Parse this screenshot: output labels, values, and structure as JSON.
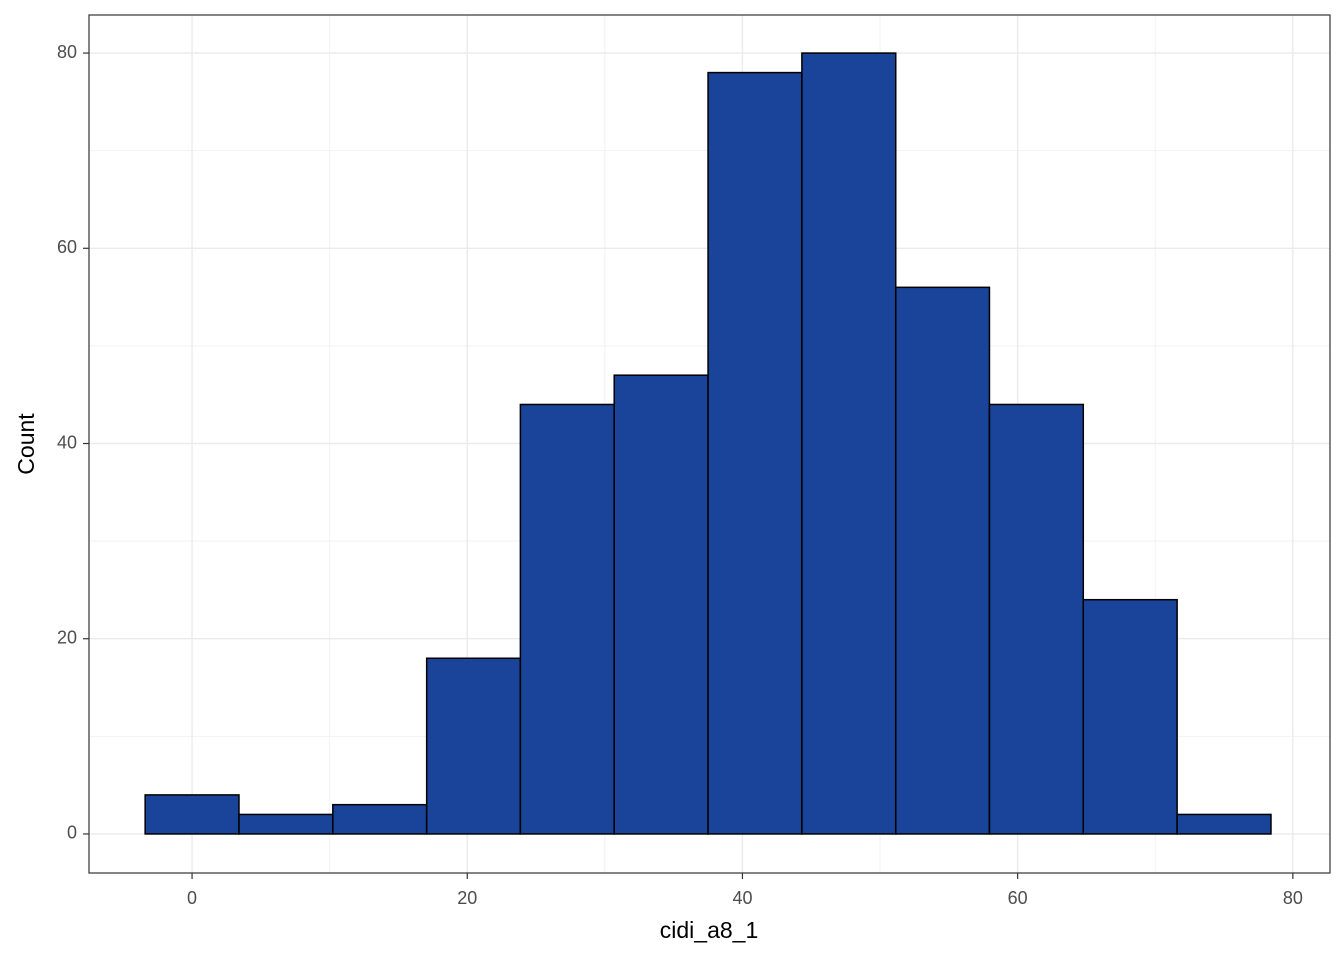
{
  "chart_data": {
    "type": "histogram",
    "x_label": "cidi_a8_1",
    "y_label": "Count",
    "bins": [
      -3.41,
      3.41,
      10.23,
      17.05,
      23.86,
      30.68,
      37.5,
      44.32,
      51.14,
      57.95,
      64.77,
      71.59,
      78.41
    ],
    "values": [
      4,
      2,
      3,
      18,
      44,
      47,
      78,
      80,
      56,
      44,
      24,
      2
    ],
    "color": "#1a4499",
    "xlim": [
      -7.49,
      82.7
    ],
    "xticks": [
      0,
      20,
      40,
      60,
      80
    ],
    "ylim": [
      -4,
      83.9
    ],
    "yticks": [
      0,
      20,
      40,
      60,
      80
    ],
    "grid": true
  }
}
